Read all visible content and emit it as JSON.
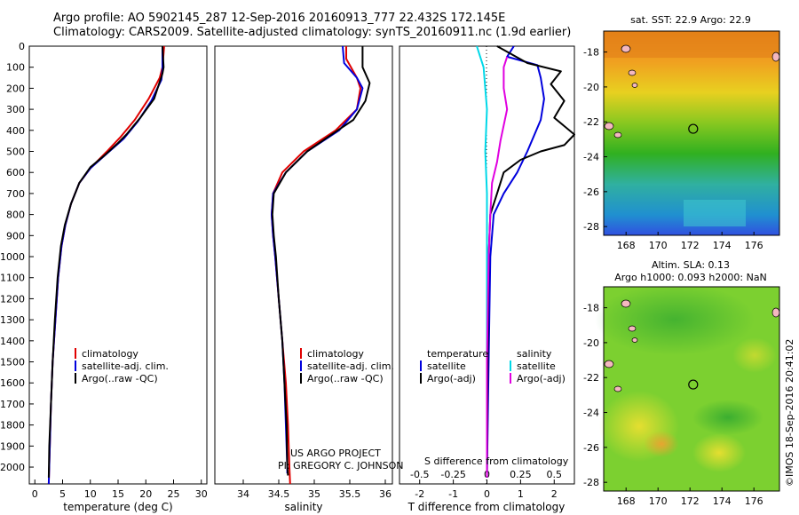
{
  "header": {
    "line1": "Argo profile: AO 5902145_287 12-Sep-2016 20160913_777 22.432S 172.145E",
    "line2": "Climatology: CARS2009. Satellite-adjusted climatology: synTS_20160911.nc (1.9d earlier)"
  },
  "credit": {
    "line1": "US ARGO PROJECT",
    "line2": "PI: GREGORY C. JOHNSON"
  },
  "watermark": "©IMOS 18-Sep-2016 20:41:02",
  "colors": {
    "climatology": "#e00000",
    "satellite": "#0000dd",
    "argo": "#000000",
    "sat_salinity": "#00d8e8",
    "argo_salinity": "#e000e0"
  },
  "chart_data": [
    {
      "type": "line",
      "id": "temperature",
      "xlabel": "temperature (deg C)",
      "ylabel": "",
      "xlim": [
        -1,
        31
      ],
      "ylim": [
        2080,
        0
      ],
      "xticks": [
        "0",
        "5",
        "10",
        "15",
        "20",
        "25",
        "30"
      ],
      "yticks": [
        "0",
        "100",
        "200",
        "300",
        "400",
        "500",
        "600",
        "700",
        "800",
        "900",
        "1000",
        "1100",
        "1200",
        "1300",
        "1400",
        "1500",
        "1600",
        "1700",
        "1800",
        "1900",
        "2000"
      ],
      "legend": [
        "climatology",
        "satellite-adj. clim.",
        "Argo(..raw -QC)"
      ],
      "series": [
        {
          "name": "climatology",
          "color": "climatology",
          "points": [
            [
              23.3,
              0
            ],
            [
              23.0,
              100
            ],
            [
              22.5,
              150
            ],
            [
              20.5,
              250
            ],
            [
              18.0,
              350
            ],
            [
              15.5,
              430
            ],
            [
              13.0,
              500
            ],
            [
              10.0,
              580
            ],
            [
              8.0,
              650
            ],
            [
              6.5,
              750
            ],
            [
              5.5,
              850
            ],
            [
              4.8,
              950
            ],
            [
              4.2,
              1100
            ],
            [
              3.7,
              1300
            ],
            [
              3.2,
              1500
            ],
            [
              2.9,
              1700
            ],
            [
              2.7,
              1900
            ],
            [
              2.5,
              2080
            ]
          ]
        },
        {
          "name": "satellite-adj. clim.",
          "color": "satellite",
          "points": [
            [
              23.0,
              0
            ],
            [
              23.0,
              110
            ],
            [
              22.8,
              160
            ],
            [
              21.0,
              260
            ],
            [
              18.5,
              360
            ],
            [
              16.0,
              440
            ],
            [
              13.0,
              510
            ],
            [
              10.0,
              580
            ],
            [
              8.0,
              650
            ],
            [
              6.5,
              750
            ],
            [
              5.5,
              850
            ],
            [
              4.8,
              950
            ],
            [
              4.2,
              1100
            ],
            [
              3.7,
              1300
            ],
            [
              3.2,
              1500
            ],
            [
              2.9,
              1700
            ],
            [
              2.7,
              1900
            ],
            [
              2.5,
              2080
            ]
          ]
        },
        {
          "name": "Argo(..raw -QC)",
          "color": "argo",
          "points": [
            [
              23.0,
              0
            ],
            [
              23.2,
              100
            ],
            [
              23.0,
              130
            ],
            [
              21.5,
              250
            ],
            [
              19.0,
              340
            ],
            [
              16.5,
              420
            ],
            [
              15.0,
              460
            ],
            [
              12.5,
              520
            ],
            [
              10.0,
              575
            ],
            [
              8.0,
              650
            ],
            [
              6.5,
              750
            ],
            [
              5.4,
              850
            ],
            [
              4.7,
              950
            ],
            [
              4.1,
              1100
            ],
            [
              3.6,
              1300
            ],
            [
              3.2,
              1500
            ],
            [
              2.9,
              1700
            ],
            [
              2.6,
              1900
            ],
            [
              2.5,
              2050
            ]
          ]
        }
      ]
    },
    {
      "type": "line",
      "id": "salinity",
      "xlabel": "salinity",
      "ylabel": "",
      "xlim": [
        33.6,
        36.1
      ],
      "ylim": [
        2080,
        0
      ],
      "xticks": [
        "34",
        "34.5",
        "35",
        "35.5",
        "36"
      ],
      "legend": [
        "climatology",
        "satellite-adj. clim.",
        "Argo(..raw -QC)"
      ],
      "series": [
        {
          "name": "climatology",
          "color": "climatology",
          "points": [
            [
              35.45,
              0
            ],
            [
              35.45,
              60
            ],
            [
              35.6,
              150
            ],
            [
              35.65,
              200
            ],
            [
              35.6,
              300
            ],
            [
              35.3,
              400
            ],
            [
              34.85,
              500
            ],
            [
              34.55,
              600
            ],
            [
              34.42,
              700
            ],
            [
              34.4,
              800
            ],
            [
              34.42,
              900
            ],
            [
              34.45,
              1000
            ],
            [
              34.5,
              1200
            ],
            [
              34.55,
              1400
            ],
            [
              34.6,
              1600
            ],
            [
              34.63,
              1800
            ],
            [
              34.65,
              2000
            ],
            [
              34.66,
              2080
            ]
          ]
        },
        {
          "name": "satellite-adj. clim.",
          "color": "satellite",
          "points": [
            [
              35.4,
              0
            ],
            [
              35.42,
              80
            ],
            [
              35.6,
              150
            ],
            [
              35.68,
              200
            ],
            [
              35.6,
              300
            ],
            [
              35.35,
              400
            ],
            [
              34.9,
              500
            ],
            [
              34.6,
              600
            ],
            [
              34.42,
              700
            ],
            [
              34.4,
              800
            ],
            [
              34.42,
              900
            ],
            [
              34.45,
              1000
            ],
            [
              34.5,
              1200
            ],
            [
              34.55,
              1400
            ],
            [
              34.58,
              1600
            ],
            [
              34.6,
              1800
            ],
            [
              34.62,
              2000
            ],
            [
              34.62,
              2030
            ]
          ]
        },
        {
          "name": "Argo(..raw -QC)",
          "color": "argo",
          "points": [
            [
              35.68,
              0
            ],
            [
              35.68,
              100
            ],
            [
              35.78,
              175
            ],
            [
              35.72,
              260
            ],
            [
              35.55,
              350
            ],
            [
              35.2,
              430
            ],
            [
              34.9,
              500
            ],
            [
              34.6,
              600
            ],
            [
              34.43,
              700
            ],
            [
              34.41,
              800
            ],
            [
              34.43,
              900
            ],
            [
              34.46,
              1000
            ],
            [
              34.5,
              1200
            ],
            [
              34.55,
              1400
            ],
            [
              34.58,
              1600
            ],
            [
              34.61,
              1800
            ],
            [
              34.62,
              2000
            ],
            [
              34.63,
              2040
            ]
          ]
        }
      ]
    },
    {
      "type": "line",
      "id": "difference",
      "xlabel": "T difference from climatology",
      "xlabel2": "S difference from climatology",
      "ylabel": "",
      "xlim": [
        -2.6,
        2.6
      ],
      "ylim": [
        2080,
        0
      ],
      "xticks": [
        "-2",
        "-1",
        "0",
        "1",
        "2"
      ],
      "xticks2": [
        "-0.5",
        "-0.25",
        "0",
        "0.25",
        "0.5"
      ],
      "legend_temperature": {
        "title": "temperature",
        "items": [
          "satellite",
          "Argo(-adj)"
        ]
      },
      "legend_salinity": {
        "title": "salinity",
        "items": [
          "satellite",
          "Argo(-adj)"
        ]
      },
      "series": [
        {
          "name": "temperature satellite",
          "color": "satellite",
          "points": [
            [
              0.8,
              0
            ],
            [
              0.6,
              50
            ],
            [
              1.5,
              90
            ],
            [
              1.6,
              150
            ],
            [
              1.7,
              250
            ],
            [
              1.6,
              350
            ],
            [
              1.2,
              500
            ],
            [
              0.9,
              600
            ],
            [
              0.5,
              700
            ],
            [
              0.2,
              800
            ],
            [
              0.1,
              1000
            ],
            [
              0.05,
              1500
            ],
            [
              0,
              2050
            ]
          ]
        },
        {
          "name": "temperature Argo(-adj)",
          "color": "argo",
          "points": [
            [
              0.3,
              0
            ],
            [
              1.2,
              80
            ],
            [
              2.2,
              120
            ],
            [
              1.9,
              180
            ],
            [
              2.3,
              260
            ],
            [
              2.0,
              340
            ],
            [
              2.6,
              420
            ],
            [
              2.3,
              470
            ],
            [
              1.6,
              500
            ],
            [
              1.0,
              540
            ],
            [
              0.5,
              600
            ],
            [
              0.3,
              700
            ],
            [
              0.1,
              800
            ],
            [
              0.05,
              1000
            ],
            [
              0.02,
              1500
            ],
            [
              0,
              2050
            ]
          ]
        },
        {
          "name": "salinity satellite",
          "color": "sat_salinity",
          "points": [
            [
              -0.3,
              0
            ],
            [
              -0.2,
              50
            ],
            [
              -0.1,
              100
            ],
            [
              -0.05,
              200
            ],
            [
              0,
              300
            ],
            [
              -0.05,
              500
            ],
            [
              0,
              700
            ],
            [
              0,
              900
            ],
            [
              0,
              1200
            ],
            [
              0,
              1500
            ],
            [
              0,
              2050
            ]
          ]
        },
        {
          "name": "salinity Argo(-adj)",
          "color": "argo_salinity",
          "points": [
            [
              0.6,
              50
            ],
            [
              0.5,
              100
            ],
            [
              0.5,
              200
            ],
            [
              0.6,
              300
            ],
            [
              0.4,
              450
            ],
            [
              0.3,
              550
            ],
            [
              0.15,
              650
            ],
            [
              0.1,
              800
            ],
            [
              0.05,
              1000
            ],
            [
              0,
              1500
            ],
            [
              0,
              2050
            ]
          ]
        }
      ]
    },
    {
      "type": "heatmap",
      "id": "sst_map",
      "title": "sat. SST: 22.9 Argo: 22.9",
      "xticks": [
        "168",
        "170",
        "172",
        "174",
        "176"
      ],
      "yticks": [
        "-18",
        "-20",
        "-22",
        "-24",
        "-26",
        "-28"
      ],
      "xlim": [
        166.6,
        177.6
      ],
      "ylim": [
        -28.5,
        -16.8
      ],
      "marker": [
        172.2,
        -22.4
      ]
    },
    {
      "type": "heatmap",
      "id": "sla_map",
      "title": "Altim. SLA: 0.13",
      "subtitle": "Argo h1000: 0.093 h2000: NaN",
      "xticks": [
        "168",
        "170",
        "172",
        "174",
        "176"
      ],
      "yticks": [
        "-18",
        "-20",
        "-22",
        "-24",
        "-26",
        "-28"
      ],
      "xlim": [
        166.6,
        177.6
      ],
      "ylim": [
        -28.5,
        -16.8
      ],
      "marker": [
        172.2,
        -22.4
      ]
    }
  ]
}
